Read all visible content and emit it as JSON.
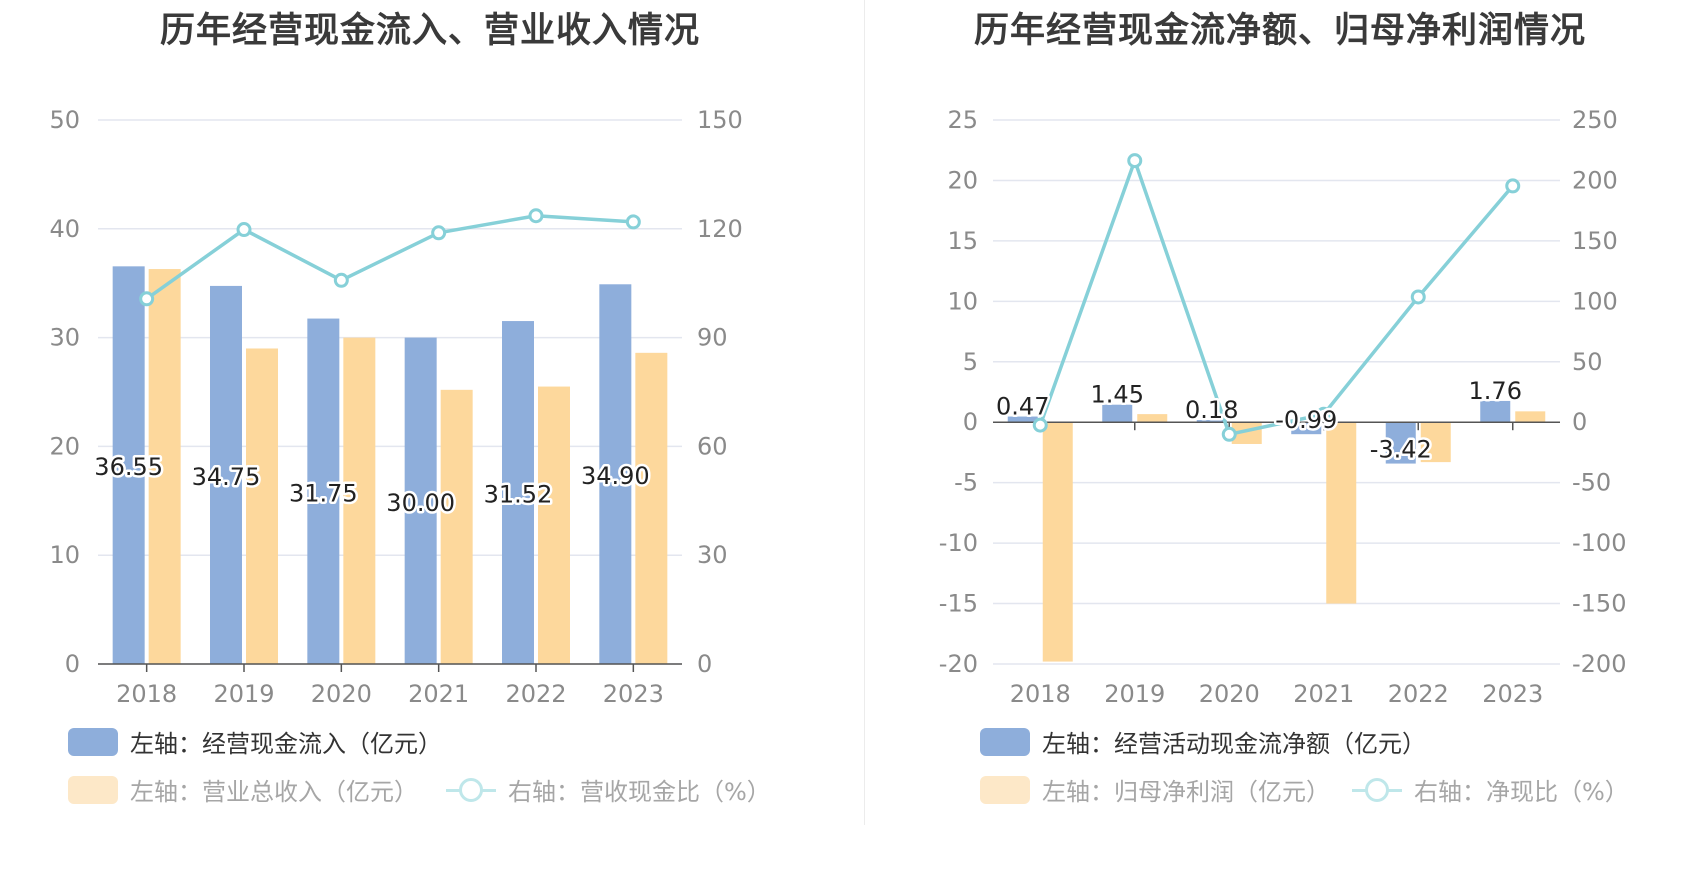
{
  "colors": {
    "bar1": "#8eaedb",
    "bar2": "#fdd89c",
    "line": "#86d0d8",
    "legend_line_dim": "#bfe7ea",
    "legend_bar2_dim": "#fde8c8",
    "grid": "#e3e6ef",
    "axis": "#555555"
  },
  "chart_data": [
    {
      "type": "bar",
      "title": "历年经营现金流入、营业收入情况",
      "categories": [
        "2018",
        "2019",
        "2020",
        "2021",
        "2022",
        "2023"
      ],
      "y_left": {
        "min": 0,
        "max": 50,
        "ticks": [
          "0",
          "10",
          "20",
          "30",
          "40",
          "50"
        ]
      },
      "y_right": {
        "min": 0,
        "max": 150,
        "ticks": [
          "0",
          "30",
          "60",
          "90",
          "120",
          "150"
        ]
      },
      "grid": true,
      "legend_position": "bottom",
      "series": [
        {
          "name": "左轴：经营现金流入（亿元）",
          "kind": "bar",
          "axis": "left",
          "values": [
            36.55,
            34.75,
            31.75,
            30.0,
            31.52,
            34.9
          ],
          "labels": [
            "36.55",
            "34.75",
            "31.75",
            "30.00",
            "31.52",
            "34.90"
          ]
        },
        {
          "name": "左轴：营业总收入（亿元）",
          "kind": "bar",
          "axis": "left",
          "values": [
            36.3,
            29.0,
            30.0,
            25.2,
            25.5,
            28.6
          ]
        },
        {
          "name": "右轴：营收现金比（%）",
          "kind": "line",
          "axis": "right",
          "values": [
            100.7,
            119.8,
            105.8,
            118.9,
            123.6,
            121.9
          ]
        }
      ]
    },
    {
      "type": "bar",
      "title": "历年经营现金流净额、归母净利润情况",
      "categories": [
        "2018",
        "2019",
        "2020",
        "2021",
        "2022",
        "2023"
      ],
      "y_left": {
        "min": -20,
        "max": 25,
        "ticks": [
          "-20",
          "-15",
          "-10",
          "-5",
          "0",
          "5",
          "10",
          "15",
          "20",
          "25"
        ]
      },
      "y_right": {
        "min": -200,
        "max": 250,
        "ticks": [
          "-200",
          "-150",
          "-100",
          "-50",
          "0",
          "50",
          "100",
          "150",
          "200",
          "250"
        ]
      },
      "grid": true,
      "legend_position": "bottom",
      "series": [
        {
          "name": "左轴：经营活动现金流净额（亿元）",
          "kind": "bar",
          "axis": "left",
          "values": [
            0.47,
            1.45,
            0.18,
            -0.99,
            -3.42,
            1.76
          ],
          "labels": [
            "0.47",
            "1.45",
            "0.18",
            "-0.99",
            "-3.42",
            "1.76"
          ]
        },
        {
          "name": "左轴：归母净利润（亿元）",
          "kind": "bar",
          "axis": "left",
          "values": [
            -19.8,
            0.67,
            -1.8,
            -15.0,
            -3.3,
            0.9
          ]
        },
        {
          "name": "右轴：净现比（%）",
          "kind": "line",
          "axis": "right",
          "values": [
            -2.4,
            216.4,
            -10.0,
            6.6,
            103.6,
            195.5
          ]
        }
      ]
    }
  ]
}
